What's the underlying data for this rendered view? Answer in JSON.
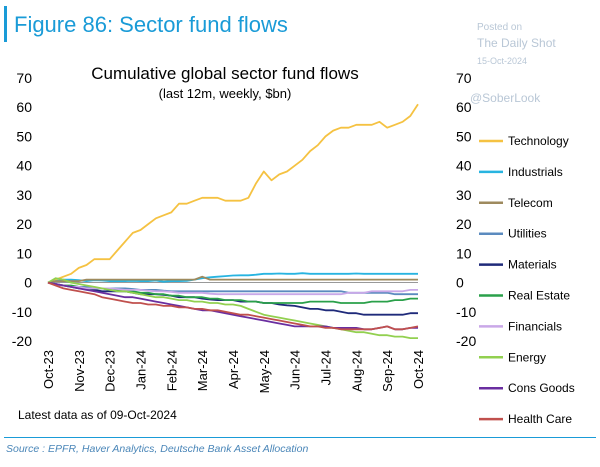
{
  "header": {
    "figure_title": "Figure 86: Sector fund flows",
    "watermark": [
      "Posted on",
      "The Daily Shot",
      "15-Oct-2024",
      "@SoberLook"
    ]
  },
  "chart_data": {
    "type": "line",
    "title": "Cumulative global sector fund flows",
    "subtitle": "(last 12m, weekly, $bn)",
    "ylim": [
      -20,
      70
    ],
    "yticks": [
      70,
      60,
      50,
      40,
      30,
      20,
      10,
      0,
      -10,
      -20
    ],
    "x_labels": [
      "Oct-23",
      "Nov-23",
      "Dec-23",
      "Jan-24",
      "Feb-24",
      "Mar-24",
      "Apr-24",
      "May-24",
      "Jun-24",
      "Jul-24",
      "Aug-24",
      "Sep-24",
      "Oct-24"
    ],
    "legend_position": "right",
    "series": [
      {
        "name": "Technology",
        "color": "#f5c242",
        "values": [
          0,
          1,
          2,
          3,
          5,
          6,
          8,
          8,
          8,
          11,
          14,
          17,
          18,
          20,
          22,
          23,
          24,
          27,
          27,
          28,
          29,
          29,
          29,
          28,
          28,
          28,
          29,
          34,
          38,
          35,
          37,
          38,
          40,
          42,
          45,
          47,
          50,
          52,
          53,
          53,
          54,
          54,
          54,
          55,
          53,
          54,
          55,
          57,
          61
        ]
      },
      {
        "name": "Industrials",
        "color": "#28b4e0",
        "values": [
          0,
          0.5,
          1,
          1,
          0.8,
          0.5,
          0.8,
          0.7,
          0.5,
          0.5,
          0.5,
          0.6,
          0.5,
          0.5,
          0.7,
          0.3,
          0.5,
          0.5,
          0.6,
          1,
          1.5,
          1.8,
          2,
          2.2,
          2.4,
          2.5,
          2.5,
          2.7,
          3,
          3,
          3.1,
          3,
          3,
          3.2,
          3,
          3,
          3,
          3,
          3,
          3,
          3.1,
          3,
          3,
          3,
          3,
          3,
          3,
          3,
          3
        ]
      },
      {
        "name": "Telecom",
        "color": "#9e8a5e",
        "values": [
          0,
          0.5,
          0.5,
          0.5,
          0.5,
          1,
          1,
          1,
          1,
          1,
          1,
          1,
          1,
          1,
          1,
          1,
          1,
          1,
          1,
          1,
          2,
          1,
          1,
          1,
          1,
          1,
          1,
          1,
          1,
          1,
          1,
          1,
          1,
          1,
          1,
          1,
          1,
          1,
          1,
          1,
          1,
          1,
          1,
          1,
          1,
          1,
          1,
          1,
          1
        ]
      },
      {
        "name": "Utilities",
        "color": "#5b8bbf",
        "values": [
          0,
          -0.5,
          -1,
          -1.2,
          -1.5,
          -1.5,
          -2,
          -2,
          -2,
          -2,
          -2,
          -2.2,
          -2.5,
          -2.5,
          -2.5,
          -2.8,
          -3,
          -3,
          -3,
          -3,
          -3,
          -3,
          -3,
          -3,
          -3,
          -3,
          -3,
          -3,
          -3,
          -3,
          -3,
          -3,
          -3,
          -3,
          -3,
          -3,
          -3,
          -3,
          -3,
          -3.5,
          -3.5,
          -3.5,
          -3.5,
          -3.5,
          -3.5,
          -4,
          -4,
          -4,
          -4
        ]
      },
      {
        "name": "Materials",
        "color": "#1f2a7a",
        "values": [
          0,
          -0.5,
          -1,
          -1.5,
          -2,
          -2,
          -2.5,
          -3,
          -3,
          -3,
          -3,
          -3.5,
          -4,
          -4,
          -4,
          -4.2,
          -4.5,
          -5,
          -5,
          -5,
          -5.5,
          -5.8,
          -6,
          -6,
          -6,
          -6.5,
          -6.5,
          -6.5,
          -7,
          -7,
          -7.5,
          -7.8,
          -8,
          -8.5,
          -9,
          -9,
          -9.5,
          -9.5,
          -10,
          -10.5,
          -10.5,
          -11,
          -11,
          -11,
          -11,
          -11,
          -11,
          -10.5,
          -10.5
        ]
      },
      {
        "name": "Real Estate",
        "color": "#2aa04a",
        "values": [
          0,
          -0.5,
          -1,
          -1,
          -1.5,
          -2,
          -2,
          -2,
          -2.5,
          -2.5,
          -3,
          -3,
          -3.5,
          -3.5,
          -4,
          -4,
          -4.5,
          -4.5,
          -5,
          -5,
          -5,
          -5.5,
          -5.5,
          -6,
          -6,
          -6,
          -6.5,
          -6.5,
          -7,
          -7,
          -7,
          -7,
          -7,
          -7,
          -6.5,
          -6.5,
          -6.5,
          -6.5,
          -7,
          -7,
          -7,
          -7,
          -6.5,
          -6.5,
          -6.5,
          -6,
          -6,
          -5.5,
          -5.5
        ]
      },
      {
        "name": "Financials",
        "color": "#c9a8e8",
        "values": [
          0,
          -0.5,
          -1,
          -1.5,
          -1.5,
          -2,
          -2,
          -2,
          -2,
          -2.2,
          -2.5,
          -2.5,
          -2.5,
          -2.8,
          -3,
          -3,
          -3.2,
          -3.5,
          -3.5,
          -3.5,
          -3.5,
          -3.8,
          -4,
          -4,
          -4,
          -4,
          -4,
          -4,
          -4,
          -4,
          -4,
          -4,
          -4,
          -4,
          -4,
          -4,
          -4,
          -4,
          -4,
          -3.5,
          -3.5,
          -3.5,
          -3,
          -3,
          -3,
          -3,
          -3,
          -2.5,
          -2.5
        ]
      },
      {
        "name": "Energy",
        "color": "#92d050",
        "values": [
          0,
          1.5,
          1,
          0,
          -0.5,
          -1,
          -1.5,
          -2,
          -2.5,
          -3,
          -3,
          -3.5,
          -4,
          -4.5,
          -5,
          -5,
          -5.5,
          -6,
          -6,
          -6.5,
          -6.5,
          -7,
          -7,
          -7.5,
          -7.5,
          -8,
          -9,
          -10,
          -11,
          -11.5,
          -12,
          -12.5,
          -13,
          -13.5,
          -14,
          -14.5,
          -15,
          -15.5,
          -16,
          -16.5,
          -17,
          -17,
          -17.5,
          -18,
          -18,
          -18.5,
          -18.5,
          -19,
          -19
        ]
      },
      {
        "name": "Cons Goods",
        "color": "#6a2ea0",
        "values": [
          0,
          -0.5,
          -1,
          -1.5,
          -2,
          -2.5,
          -3,
          -3.5,
          -4,
          -4.5,
          -5,
          -5,
          -5.5,
          -6,
          -6.5,
          -7,
          -7.5,
          -8,
          -8.5,
          -9,
          -9.5,
          -9.5,
          -10,
          -10.5,
          -11,
          -11.5,
          -12,
          -12.5,
          -13,
          -13.5,
          -14,
          -14.5,
          -15,
          -15,
          -15,
          -15,
          -15,
          -15.5,
          -15.5,
          -15.5,
          -15.5,
          -16,
          -16,
          -15.5,
          -15,
          -16,
          -16,
          -15.5,
          -15.5
        ]
      },
      {
        "name": "Health Care",
        "color": "#c0504d",
        "values": [
          0,
          -1,
          -2,
          -2.5,
          -3,
          -3.5,
          -4,
          -5,
          -5.5,
          -6,
          -6.5,
          -7,
          -7,
          -7.5,
          -7.5,
          -8,
          -8,
          -8.5,
          -8.5,
          -9,
          -9,
          -9.5,
          -9.5,
          -10,
          -10.5,
          -11,
          -11,
          -11.5,
          -12,
          -12.5,
          -13,
          -13.5,
          -14,
          -14.5,
          -15,
          -15,
          -15.5,
          -15.5,
          -16,
          -16,
          -16,
          -16,
          -16,
          -15.5,
          -15,
          -16,
          -16,
          -15.5,
          -15
        ]
      }
    ]
  },
  "footer": {
    "latest": "Latest data as of 09-Oct-2024",
    "source": "Source : EPFR, Haver Analytics, Deutsche Bank Asset Allocation"
  }
}
